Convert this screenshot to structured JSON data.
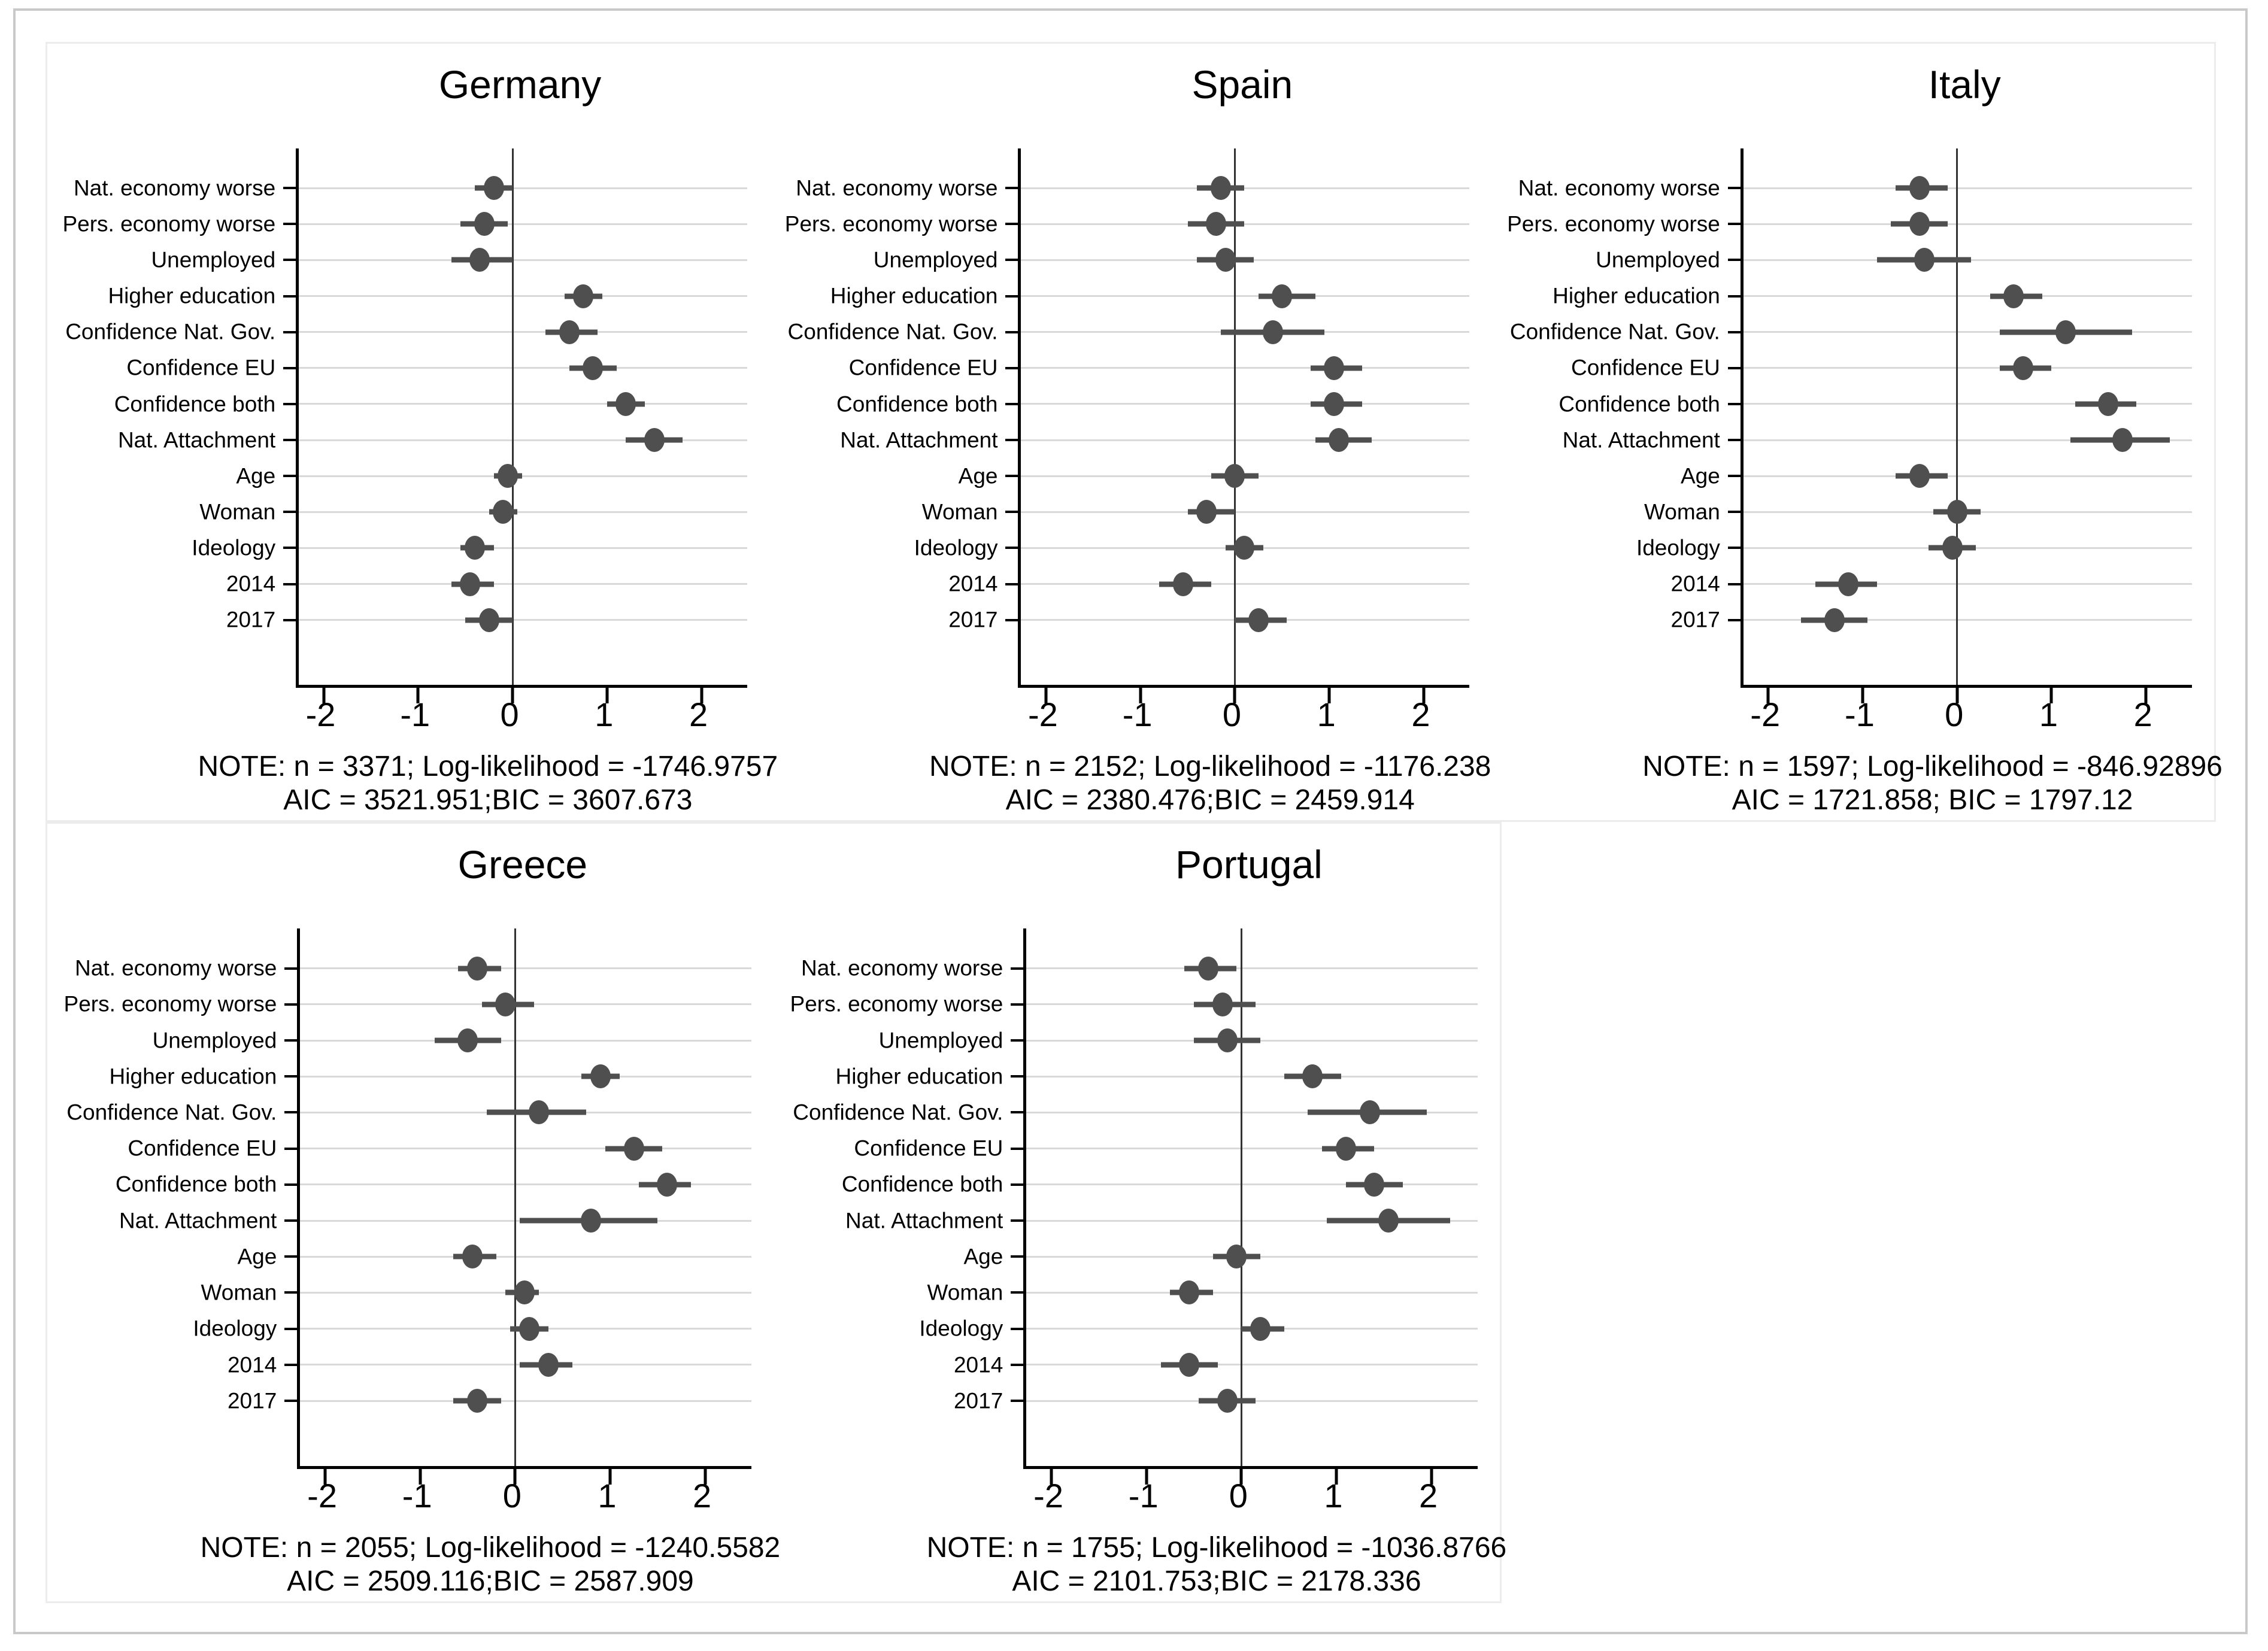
{
  "page": {
    "background": "#ffffff",
    "page_border_color": "#c9c9c9",
    "block_border_color": "#ececec"
  },
  "style": {
    "dot_color": "#4f4f4f",
    "ci_color": "#4f4f4f",
    "zero_line_color": "#333333",
    "grid_color": "#d9d9d9",
    "axis_color": "#000000",
    "text_color": "#000000"
  },
  "chart_data": [
    {
      "type": "scatter",
      "subtype": "dot-whisker coefficient plot",
      "title": "Germany",
      "categories": [
        "Nat. economy worse",
        "Pers. economy worse",
        "Unemployed",
        "Higher education",
        "Confidence Nat. Gov.",
        "Confidence EU",
        "Confidence both",
        "Nat. Attachment",
        "Age",
        "Woman",
        "Ideology",
        "2014",
        "2017"
      ],
      "series": [
        {
          "name": "coefficient",
          "values": [
            -0.2,
            -0.3,
            -0.35,
            0.75,
            0.6,
            0.85,
            1.2,
            1.5,
            -0.05,
            -0.1,
            -0.4,
            -0.45,
            -0.25
          ]
        },
        {
          "name": "ci_lower",
          "values": [
            -0.4,
            -0.55,
            -0.65,
            0.55,
            0.35,
            0.6,
            1.0,
            1.2,
            -0.2,
            -0.25,
            -0.55,
            -0.65,
            -0.5
          ]
        },
        {
          "name": "ci_upper",
          "values": [
            0.0,
            -0.05,
            0.0,
            0.95,
            0.9,
            1.1,
            1.4,
            1.8,
            0.1,
            0.05,
            -0.2,
            -0.2,
            0.0
          ]
        }
      ],
      "xlim": [
        -2.26,
        2.48
      ],
      "xticks": [
        -2,
        -1,
        0,
        1,
        2
      ],
      "xtick_labels": [
        "-2",
        "-1",
        "0",
        "1",
        "2"
      ],
      "zero_reference_line": true,
      "grid": "horizontal category gridlines",
      "legend_position": "none",
      "notes": [
        "NOTE: n = 3371; Log-likelihood = -1746.9757",
        "AIC = 3521.951;BIC = 3607.673"
      ]
    },
    {
      "type": "scatter",
      "subtype": "dot-whisker coefficient plot",
      "title": "Spain",
      "categories": [
        "Nat. economy worse",
        "Pers. economy worse",
        "Unemployed",
        "Higher education",
        "Confidence Nat. Gov.",
        "Confidence EU",
        "Confidence both",
        "Nat. Attachment",
        "Age",
        "Woman",
        "Ideology",
        "2014",
        "2017"
      ],
      "series": [
        {
          "name": "coefficient",
          "values": [
            -0.15,
            -0.2,
            -0.1,
            0.5,
            0.4,
            1.05,
            1.05,
            1.1,
            0.0,
            -0.3,
            0.1,
            -0.55,
            0.25
          ]
        },
        {
          "name": "ci_lower",
          "values": [
            -0.4,
            -0.5,
            -0.4,
            0.25,
            -0.15,
            0.8,
            0.8,
            0.85,
            -0.25,
            -0.5,
            -0.1,
            -0.8,
            0.0
          ]
        },
        {
          "name": "ci_upper",
          "values": [
            0.1,
            0.1,
            0.2,
            0.85,
            0.95,
            1.35,
            1.35,
            1.45,
            0.25,
            0.0,
            0.3,
            -0.25,
            0.55
          ]
        }
      ],
      "xlim": [
        -2.26,
        2.48
      ],
      "xticks": [
        -2,
        -1,
        0,
        1,
        2
      ],
      "xtick_labels": [
        "-2",
        "-1",
        "0",
        "1",
        "2"
      ],
      "zero_reference_line": true,
      "grid": "horizontal category gridlines",
      "legend_position": "none",
      "notes": [
        "NOTE: n = 2152; Log-likelihood = -1176.238",
        "AIC = 2380.476;BIC = 2459.914"
      ]
    },
    {
      "type": "scatter",
      "subtype": "dot-whisker coefficient plot",
      "title": "Italy",
      "categories": [
        "Nat. economy worse",
        "Pers. economy worse",
        "Unemployed",
        "Higher education",
        "Confidence Nat. Gov.",
        "Confidence EU",
        "Confidence both",
        "Nat. Attachment",
        "Age",
        "Woman",
        "Ideology",
        "2014",
        "2017"
      ],
      "series": [
        {
          "name": "coefficient",
          "values": [
            -0.4,
            -0.4,
            -0.35,
            0.6,
            1.15,
            0.7,
            1.6,
            1.75,
            -0.4,
            0.0,
            -0.05,
            -1.15,
            -1.3
          ]
        },
        {
          "name": "ci_lower",
          "values": [
            -0.65,
            -0.7,
            -0.85,
            0.35,
            0.45,
            0.45,
            1.25,
            1.2,
            -0.65,
            -0.25,
            -0.3,
            -1.5,
            -1.65
          ]
        },
        {
          "name": "ci_upper",
          "values": [
            -0.1,
            -0.1,
            0.15,
            0.9,
            1.85,
            1.0,
            1.9,
            2.25,
            -0.1,
            0.25,
            0.2,
            -0.85,
            -0.95
          ]
        }
      ],
      "xlim": [
        -2.26,
        2.48
      ],
      "xticks": [
        -2,
        -1,
        0,
        1,
        2
      ],
      "xtick_labels": [
        "-2",
        "-1",
        "0",
        "1",
        "2"
      ],
      "zero_reference_line": true,
      "grid": "horizontal category gridlines",
      "legend_position": "none",
      "notes": [
        "NOTE: n = 1597; Log-likelihood = -846.92896",
        "AIC = 1721.858; BIC = 1797.12"
      ]
    },
    {
      "type": "scatter",
      "subtype": "dot-whisker coefficient plot",
      "title": "Greece",
      "categories": [
        "Nat. economy worse",
        "Pers. economy worse",
        "Unemployed",
        "Higher education",
        "Confidence Nat. Gov.",
        "Confidence EU",
        "Confidence both",
        "Nat. Attachment",
        "Age",
        "Woman",
        "Ideology",
        "2014",
        "2017"
      ],
      "series": [
        {
          "name": "coefficient",
          "values": [
            -0.4,
            -0.1,
            -0.5,
            0.9,
            0.25,
            1.25,
            1.6,
            0.8,
            -0.45,
            0.1,
            0.15,
            0.35,
            -0.4
          ]
        },
        {
          "name": "ci_lower",
          "values": [
            -0.6,
            -0.35,
            -0.85,
            0.7,
            -0.3,
            0.95,
            1.3,
            0.05,
            -0.65,
            -0.1,
            -0.05,
            0.05,
            -0.65
          ]
        },
        {
          "name": "ci_upper",
          "values": [
            -0.15,
            0.2,
            -0.15,
            1.1,
            0.75,
            1.55,
            1.85,
            1.5,
            -0.2,
            0.25,
            0.35,
            0.6,
            -0.15
          ]
        }
      ],
      "xlim": [
        -2.26,
        2.48
      ],
      "xticks": [
        -2,
        -1,
        0,
        1,
        2
      ],
      "xtick_labels": [
        "-2",
        "-1",
        "0",
        "1",
        "2"
      ],
      "zero_reference_line": true,
      "grid": "horizontal category gridlines",
      "legend_position": "none",
      "notes": [
        "NOTE: n = 2055; Log-likelihood = -1240.5582",
        "AIC = 2509.116;BIC = 2587.909"
      ]
    },
    {
      "type": "scatter",
      "subtype": "dot-whisker coefficient plot",
      "title": "Portugal",
      "categories": [
        "Nat. economy worse",
        "Pers. economy worse",
        "Unemployed",
        "Higher education",
        "Confidence Nat. Gov.",
        "Confidence EU",
        "Confidence both",
        "Nat. Attachment",
        "Age",
        "Woman",
        "Ideology",
        "2014",
        "2017"
      ],
      "series": [
        {
          "name": "coefficient",
          "values": [
            -0.35,
            -0.2,
            -0.15,
            0.75,
            1.35,
            1.1,
            1.4,
            1.55,
            -0.05,
            -0.55,
            0.2,
            -0.55,
            -0.15
          ]
        },
        {
          "name": "ci_lower",
          "values": [
            -0.6,
            -0.5,
            -0.5,
            0.45,
            0.7,
            0.85,
            1.1,
            0.9,
            -0.3,
            -0.75,
            0.0,
            -0.85,
            -0.45
          ]
        },
        {
          "name": "ci_upper",
          "values": [
            -0.05,
            0.15,
            0.2,
            1.05,
            1.95,
            1.4,
            1.7,
            2.2,
            0.2,
            -0.3,
            0.45,
            -0.25,
            0.15
          ]
        }
      ],
      "xlim": [
        -2.26,
        2.48
      ],
      "xticks": [
        -2,
        -1,
        0,
        1,
        2
      ],
      "xtick_labels": [
        "-2",
        "-1",
        "0",
        "1",
        "2"
      ],
      "zero_reference_line": true,
      "grid": "horizontal category gridlines",
      "legend_position": "none",
      "notes": [
        "NOTE: n = 1755; Log-likelihood = -1036.8766",
        "AIC = 2101.753;BIC = 2178.336"
      ]
    }
  ]
}
